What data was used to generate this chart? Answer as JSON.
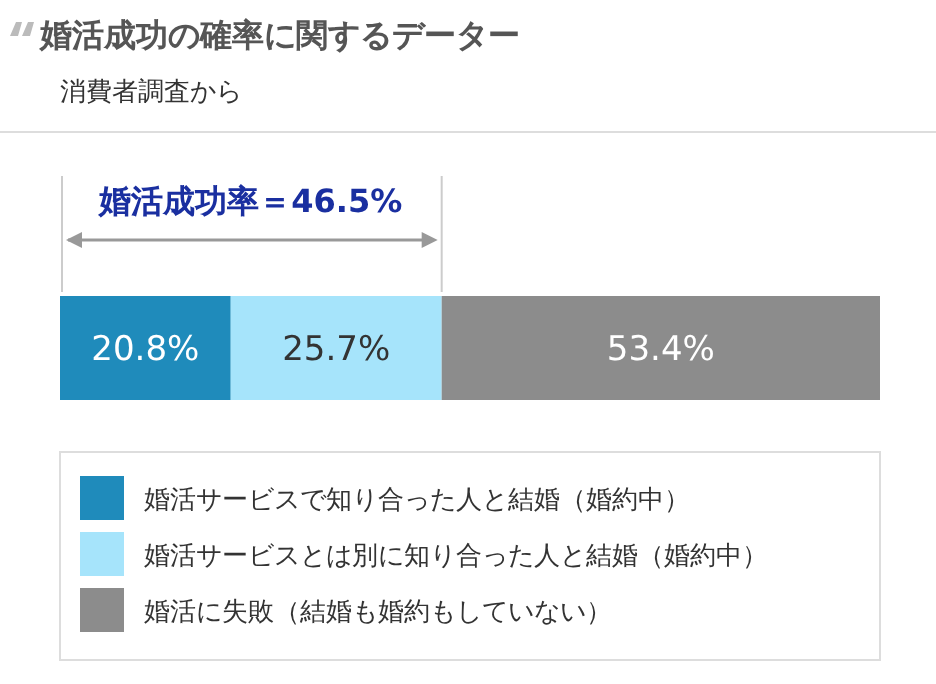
{
  "chart_data": {
    "type": "bar",
    "title": "婚活成功の確率に関するデーター",
    "subtitle": "消費者調査から",
    "orientation": "horizontal",
    "stacked": true,
    "legend": "bottom",
    "categories": [
      null
    ],
    "series": [
      {
        "name": "婚活サービスで知り合った人と結婚（婚約中）",
        "color": "#1f8bbb",
        "values": [
          20.8
        ],
        "value_labels": [
          "20.8%"
        ]
      },
      {
        "name": "婚活サービスとは別に知り合った人と結婚（婚約中）",
        "color": "#a6e4fb",
        "values": [
          25.7
        ],
        "value_labels": [
          "25.7%"
        ]
      },
      {
        "name": "婚活に失敗（結婚も婚約もしていない）",
        "color": "#8c8c8c",
        "values": [
          53.4
        ],
        "value_labels": [
          "53.4%"
        ]
      }
    ],
    "ref_lines": [
      {
        "axis": "x",
        "value": 46.5,
        "label": "婚活成功率＝46.5%",
        "color": "#cccccc"
      }
    ]
  }
}
